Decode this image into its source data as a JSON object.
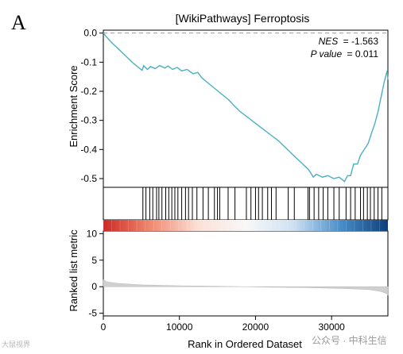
{
  "panel_label": "A",
  "watermarks": {
    "left": "大鼠视界",
    "right": "公众号 · 中科生信"
  },
  "colors": {
    "es_line": "#4bafc2",
    "baseline_dash": "#999999",
    "metric_fill": "#d0d0d0",
    "hit_bar": "#000000",
    "heat_stops": [
      "#cc2b24",
      "#f08a72",
      "#fbe0d6",
      "#f8f8f8",
      "#cfe1f2",
      "#4a8ec9",
      "#0d3f7a"
    ]
  },
  "chart_data": {
    "type": "line",
    "title": "[WikiPathways] Ferroptosis",
    "annotations": {
      "nes_label": "NES",
      "nes_value": "= -1.563",
      "p_label": "P value",
      "p_value": "= 0.011"
    },
    "top": {
      "ylabel": "Enrichment Score",
      "ylim": [
        -0.53,
        0.01
      ],
      "yticks": [
        0.0,
        -0.1,
        -0.2,
        -0.3,
        -0.4,
        -0.5
      ],
      "ytick_labels": [
        "0.0",
        "-0.1",
        "-0.2",
        "-0.3",
        "-0.4",
        "-0.5"
      ],
      "baseline": 0.0,
      "running_es": [
        [
          0,
          0.0
        ],
        [
          300,
          -0.01
        ],
        [
          1000,
          -0.03
        ],
        [
          2000,
          -0.055
        ],
        [
          3000,
          -0.08
        ],
        [
          4000,
          -0.105
        ],
        [
          5100,
          -0.128
        ],
        [
          5300,
          -0.112
        ],
        [
          5800,
          -0.125
        ],
        [
          6200,
          -0.115
        ],
        [
          6800,
          -0.122
        ],
        [
          7400,
          -0.112
        ],
        [
          8100,
          -0.12
        ],
        [
          8500,
          -0.113
        ],
        [
          9100,
          -0.125
        ],
        [
          9700,
          -0.118
        ],
        [
          10300,
          -0.13
        ],
        [
          11000,
          -0.125
        ],
        [
          11800,
          -0.14
        ],
        [
          12400,
          -0.135
        ],
        [
          13000,
          -0.155
        ],
        [
          13700,
          -0.17
        ],
        [
          14400,
          -0.185
        ],
        [
          15100,
          -0.2
        ],
        [
          15800,
          -0.215
        ],
        [
          16500,
          -0.23
        ],
        [
          17200,
          -0.25
        ],
        [
          18000,
          -0.27
        ],
        [
          19000,
          -0.29
        ],
        [
          20000,
          -0.31
        ],
        [
          21000,
          -0.33
        ],
        [
          22000,
          -0.35
        ],
        [
          23000,
          -0.37
        ],
        [
          24000,
          -0.395
        ],
        [
          25000,
          -0.42
        ],
        [
          26000,
          -0.445
        ],
        [
          27000,
          -0.47
        ],
        [
          27600,
          -0.495
        ],
        [
          28000,
          -0.485
        ],
        [
          28800,
          -0.495
        ],
        [
          29500,
          -0.49
        ],
        [
          30300,
          -0.5
        ],
        [
          31000,
          -0.495
        ],
        [
          31700,
          -0.51
        ],
        [
          32100,
          -0.49
        ],
        [
          32500,
          -0.49
        ],
        [
          32900,
          -0.45
        ],
        [
          33400,
          -0.45
        ],
        [
          33800,
          -0.42
        ],
        [
          34300,
          -0.4
        ],
        [
          34800,
          -0.38
        ],
        [
          35300,
          -0.34
        ],
        [
          35700,
          -0.31
        ],
        [
          36100,
          -0.27
        ],
        [
          36500,
          -0.22
        ],
        [
          36900,
          -0.17
        ],
        [
          37300,
          -0.13
        ],
        [
          37400,
          -0.16
        ]
      ]
    },
    "hits": [
      5200,
      5600,
      6100,
      6500,
      7000,
      7300,
      7700,
      8200,
      8600,
      9000,
      9400,
      9800,
      10300,
      10800,
      11200,
      11700,
      12300,
      13100,
      13800,
      14600,
      15000,
      15300,
      16400,
      17300,
      18800,
      19400,
      20000,
      20400,
      20900,
      21600,
      22100,
      22700,
      24300,
      25100,
      26900,
      27100,
      27700,
      28300,
      28900,
      29500,
      30300,
      31000,
      31900,
      32500,
      33100,
      33800,
      34200,
      34700,
      35100,
      35600,
      36100,
      36600
    ],
    "bottom": {
      "ylabel": "Ranked list metric",
      "ylim": [
        -5.5,
        10.5
      ],
      "yticks": [
        10,
        5,
        0,
        -5
      ],
      "ytick_labels": [
        "10",
        "5",
        "0",
        "-5"
      ],
      "metric_profile": [
        [
          0,
          1.3
        ],
        [
          500,
          0.9
        ],
        [
          2000,
          0.6
        ],
        [
          5000,
          0.35
        ],
        [
          10000,
          0.18
        ],
        [
          15000,
          0.08
        ],
        [
          18500,
          0.0
        ],
        [
          22000,
          -0.08
        ],
        [
          27000,
          -0.18
        ],
        [
          32000,
          -0.35
        ],
        [
          35000,
          -0.55
        ],
        [
          36500,
          -0.9
        ],
        [
          37200,
          -1.3
        ],
        [
          37400,
          -1.6
        ]
      ]
    },
    "x": {
      "label": "Rank in Ordered Dataset",
      "xlim": [
        0,
        37400
      ],
      "ticks": [
        0,
        10000,
        20000,
        30000
      ],
      "tick_labels": [
        "0",
        "10000",
        "20000",
        "30000"
      ]
    }
  }
}
